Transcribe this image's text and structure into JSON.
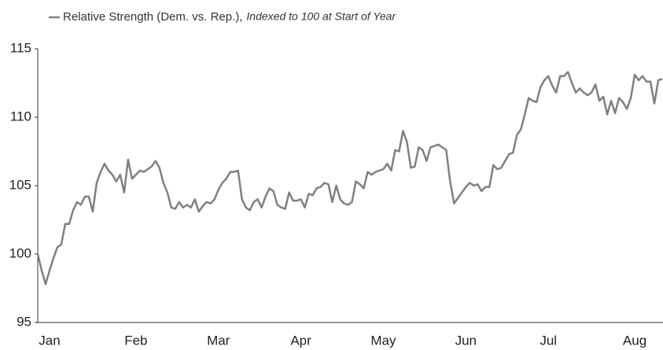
{
  "chart_data": {
    "type": "line",
    "series": [
      {
        "name": "Relative Strength (Dem. vs. Rep.),",
        "color": "#808080",
        "values": [
          100,
          98.8,
          97.8,
          98.8,
          99.7,
          100.5,
          100.7,
          102.2,
          102.2,
          103.2,
          103.8,
          103.6,
          104.2,
          104.2,
          103.1,
          105.2,
          106.0,
          106.6,
          106.1,
          105.8,
          105.3,
          105.8,
          104.5,
          106.9,
          105.5,
          105.8,
          106.1,
          106.0,
          106.2,
          106.4,
          106.8,
          106.3,
          105.2,
          104.5,
          103.4,
          103.3,
          103.8,
          103.4,
          103.6,
          103.4,
          104.0,
          103.1,
          103.5,
          103.8,
          103.7,
          104.0,
          104.7,
          105.2,
          105.5,
          106.0,
          106.0,
          106.1,
          104.0,
          103.4,
          103.2,
          103.8,
          104.0,
          103.4,
          104.2,
          104.8,
          104.6,
          103.6,
          103.4,
          103.3,
          104.5,
          103.9,
          103.9,
          104.0,
          103.4,
          104.4,
          104.3,
          104.8,
          104.9,
          105.2,
          105.1,
          103.8,
          105.0,
          104.0,
          103.7,
          103.6,
          103.8,
          105.3,
          105.1,
          104.8,
          106.0,
          105.8,
          106.0,
          106.1,
          106.2,
          106.6,
          106.1,
          107.6,
          107.5,
          109.0,
          108.2,
          106.3,
          106.4,
          107.8,
          107.6,
          106.8,
          107.8,
          107.9,
          108.0,
          107.8,
          107.6,
          105.3,
          103.7,
          104.1,
          104.5,
          104.9,
          105.2,
          105.0,
          105.1,
          104.6,
          104.9,
          104.9,
          106.5,
          106.2,
          106.3,
          106.8,
          107.3,
          107.4,
          108.7,
          109.1,
          110.2,
          111.4,
          111.2,
          111.1,
          112.2,
          112.7,
          113.0,
          112.3,
          111.8,
          113.0,
          113.0,
          113.3,
          112.5,
          111.8,
          112.1,
          111.8,
          111.6,
          111.8,
          112.4,
          111.2,
          111.5,
          110.2,
          111.2,
          110.3,
          111.4,
          111.1,
          110.6,
          111.4,
          113.1,
          112.7,
          113.0,
          112.6,
          112.6,
          111.0,
          112.7,
          112.8
        ]
      }
    ],
    "legend_note": "Indexed to 100 at Start of Year",
    "categories": [
      null,
      null,
      null,
      "Jan",
      null,
      null,
      null,
      null,
      null,
      null,
      null,
      null,
      null,
      null,
      null,
      null,
      null,
      null,
      null,
      null,
      null,
      null,
      null,
      null,
      null,
      "Feb",
      null,
      null,
      null,
      null,
      null,
      null,
      null,
      null,
      null,
      null,
      null,
      null,
      null,
      null,
      null,
      null,
      null,
      null,
      null,
      null,
      "Mar",
      null,
      null,
      null,
      null,
      null,
      null,
      null,
      null,
      null,
      null,
      null,
      null,
      null,
      null,
      null,
      null,
      null,
      null,
      null,
      null,
      "Apr",
      null,
      null,
      null,
      null,
      null,
      null,
      null,
      null,
      null,
      null,
      null,
      null,
      null,
      null,
      null,
      null,
      null,
      null,
      null,
      null,
      "May",
      null,
      null,
      null,
      null,
      null,
      null,
      null,
      null,
      null,
      null,
      null,
      null,
      null,
      null,
      null,
      null,
      null,
      null,
      null,
      null,
      "Jun",
      null,
      null,
      null,
      null,
      null,
      null,
      null,
      null,
      null,
      null,
      null,
      null,
      null,
      null,
      null,
      null,
      null,
      null,
      null,
      null,
      "Jul",
      null,
      null,
      null,
      null,
      null,
      null,
      null,
      null,
      null,
      null,
      null,
      null,
      null,
      null,
      null,
      null,
      null,
      null,
      null,
      null,
      null,
      "Aug",
      null,
      null,
      null,
      null,
      null,
      null,
      null
    ],
    "ylim": [
      95,
      115
    ],
    "yticks": [
      95,
      100,
      105,
      110,
      115
    ],
    "grid": false,
    "legend": "top-left"
  }
}
